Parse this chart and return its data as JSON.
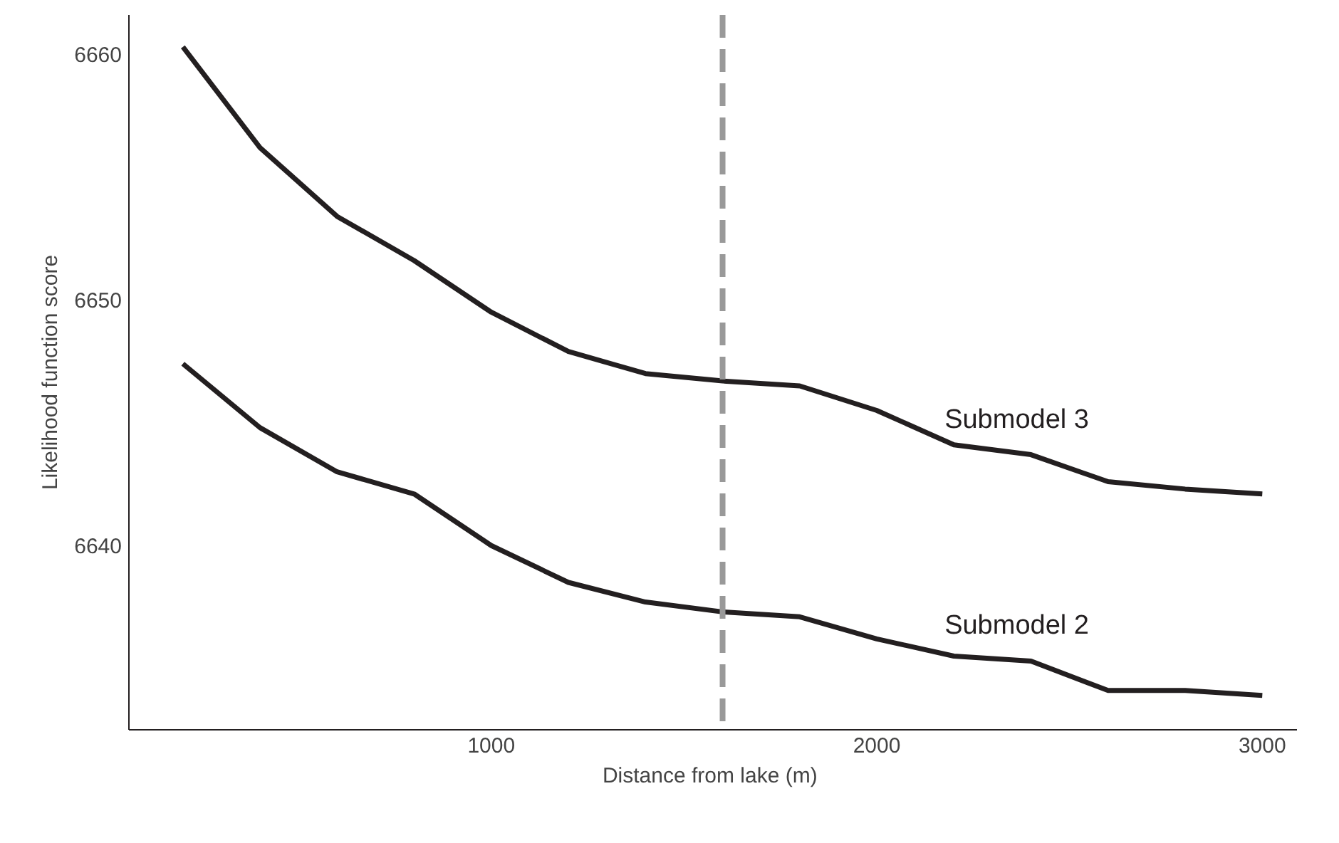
{
  "chart_data": {
    "type": "line",
    "xlabel": "Distance from lake  (m)",
    "ylabel": "Likelihood function score",
    "x": [
      200,
      400,
      600,
      800,
      1000,
      1200,
      1400,
      1600,
      1800,
      2000,
      2200,
      2400,
      2600,
      2800,
      3000
    ],
    "series": [
      {
        "name": "Submodel 3",
        "color": "#231f20",
        "values": [
          6660.3,
          6656.2,
          6653.4,
          6651.6,
          6649.5,
          6647.9,
          6647.0,
          6646.7,
          6646.5,
          6645.5,
          6644.1,
          6643.7,
          6642.6,
          6642.3,
          6642.1
        ]
      },
      {
        "name": "Submodel 2",
        "color": "#231f20",
        "values": [
          6647.4,
          6644.8,
          6643.0,
          6642.1,
          6640.0,
          6638.5,
          6637.7,
          6637.3,
          6637.1,
          6636.2,
          6635.5,
          6635.3,
          6634.1,
          6634.1,
          6633.9
        ]
      }
    ],
    "xlim": [
      60,
      3090
    ],
    "ylim": [
      6632.5,
      6661.6
    ],
    "xticks": [
      1000,
      2000,
      3000
    ],
    "yticks": [
      6640,
      6650,
      6660
    ],
    "ref_lines": [
      {
        "axis": "x",
        "value": 1600,
        "color": "#999999",
        "line_style": "dashed"
      }
    ],
    "grid": false,
    "legend": false,
    "marker": "none",
    "line_style": "solid"
  }
}
